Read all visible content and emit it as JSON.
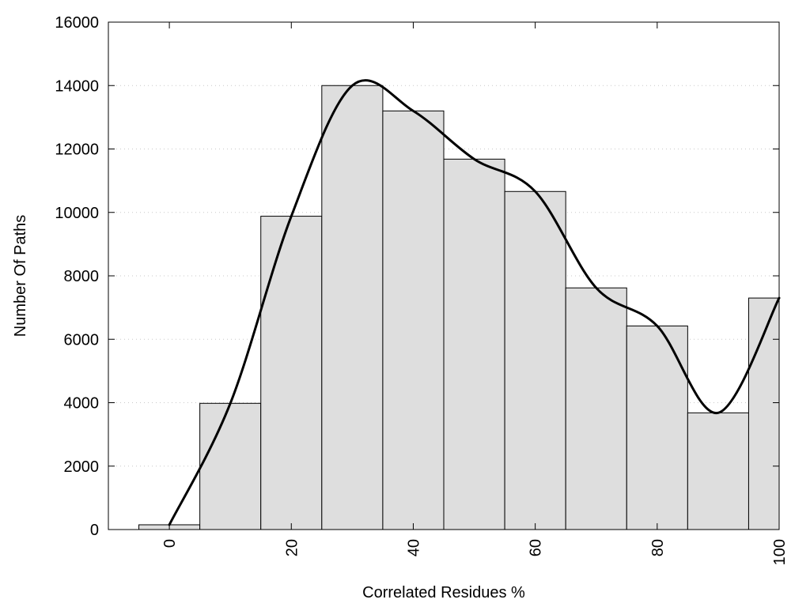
{
  "chart_data": {
    "type": "bar",
    "title": "",
    "xlabel": "Correlated Residues %",
    "ylabel": "Number Of Paths",
    "xlim": [
      -10,
      100
    ],
    "ylim": [
      0,
      16000
    ],
    "x_ticks": [
      0,
      20,
      40,
      60,
      80,
      100
    ],
    "y_ticks": [
      0,
      2000,
      4000,
      6000,
      8000,
      10000,
      12000,
      14000,
      16000
    ],
    "grid": "horizontal dotted",
    "bin_width": 10,
    "bins": [
      {
        "center": 0,
        "value": 150
      },
      {
        "center": 10,
        "value": 3980
      },
      {
        "center": 20,
        "value": 9880
      },
      {
        "center": 30,
        "value": 14000
      },
      {
        "center": 40,
        "value": 13200
      },
      {
        "center": 50,
        "value": 11680
      },
      {
        "center": 60,
        "value": 10660
      },
      {
        "center": 70,
        "value": 7620
      },
      {
        "center": 80,
        "value": 6420
      },
      {
        "center": 90,
        "value": 3680
      },
      {
        "center": 100,
        "value": 7300
      }
    ],
    "curve": "smooth line through bin tops"
  }
}
